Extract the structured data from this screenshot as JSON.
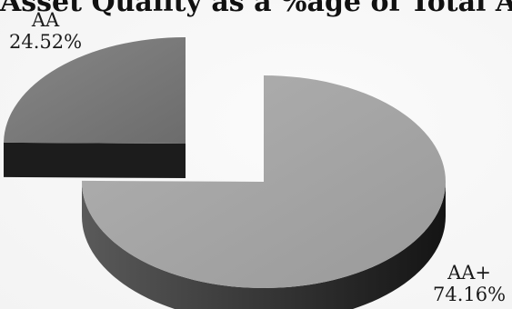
{
  "chart_data": {
    "type": "pie",
    "title": "Asset Quality as a %age of Total Assets",
    "slices": [
      {
        "label": "AA+",
        "value": 74.16,
        "value_label": "74.16%",
        "color": "#a6a6a6",
        "exploded": false
      },
      {
        "label": "AA",
        "value": 24.52,
        "value_label": "24.52%",
        "color": "#7a7a7a",
        "exploded": true
      }
    ],
    "style": "3d"
  }
}
